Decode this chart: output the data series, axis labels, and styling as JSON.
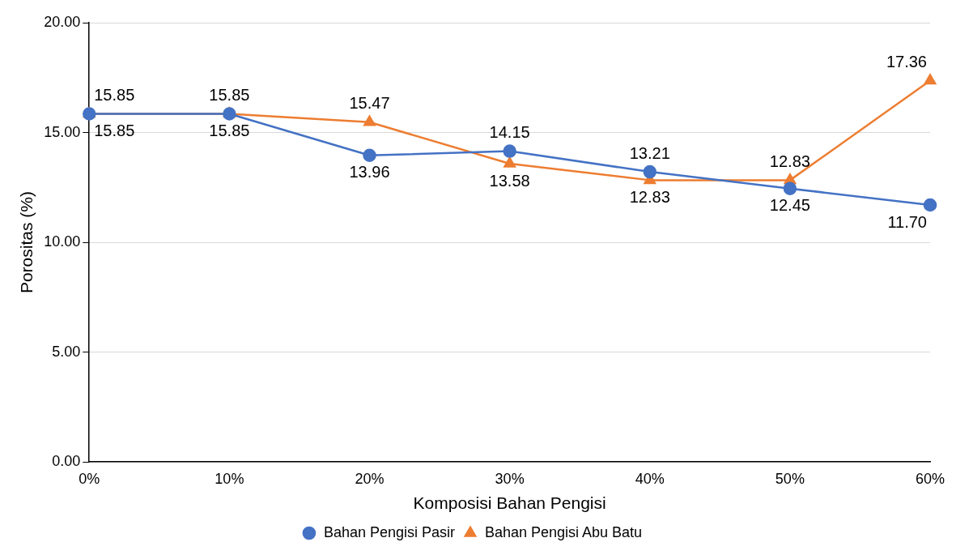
{
  "chart_data": {
    "type": "line",
    "xlabel": "Komposisi Bahan Pengisi",
    "ylabel": "Porositas (%)",
    "categories": [
      "0%",
      "10%",
      "20%",
      "30%",
      "40%",
      "50%",
      "60%"
    ],
    "ylim": [
      0,
      20
    ],
    "yticks": [
      {
        "value": 0,
        "label": "0.00"
      },
      {
        "value": 5,
        "label": "5.00"
      },
      {
        "value": 10,
        "label": "10.00"
      },
      {
        "value": 15,
        "label": "15.00"
      },
      {
        "value": 20,
        "label": "20.00"
      }
    ],
    "grid": "y",
    "legend": "bottom",
    "line_style": "solid",
    "series": [
      {
        "name": "Bahan Pengisi Pasir",
        "color": "#4472c4",
        "marker": "circle",
        "values": [
          15.85,
          15.85,
          13.96,
          14.15,
          13.21,
          12.45,
          11.7
        ],
        "value_labels": [
          "15.85",
          "15.85",
          "13.96",
          "14.15",
          "13.21",
          "12.45",
          "11.70"
        ]
      },
      {
        "name": "Bahan Pengisi Abu Batu",
        "color": "#ed7d31",
        "marker": "triangle",
        "values": [
          15.85,
          15.85,
          15.47,
          13.58,
          12.83,
          12.83,
          17.36
        ],
        "value_labels": [
          "15.85",
          "15.85",
          "15.47",
          "13.58",
          "12.83",
          "12.83",
          "17.36"
        ]
      }
    ]
  }
}
